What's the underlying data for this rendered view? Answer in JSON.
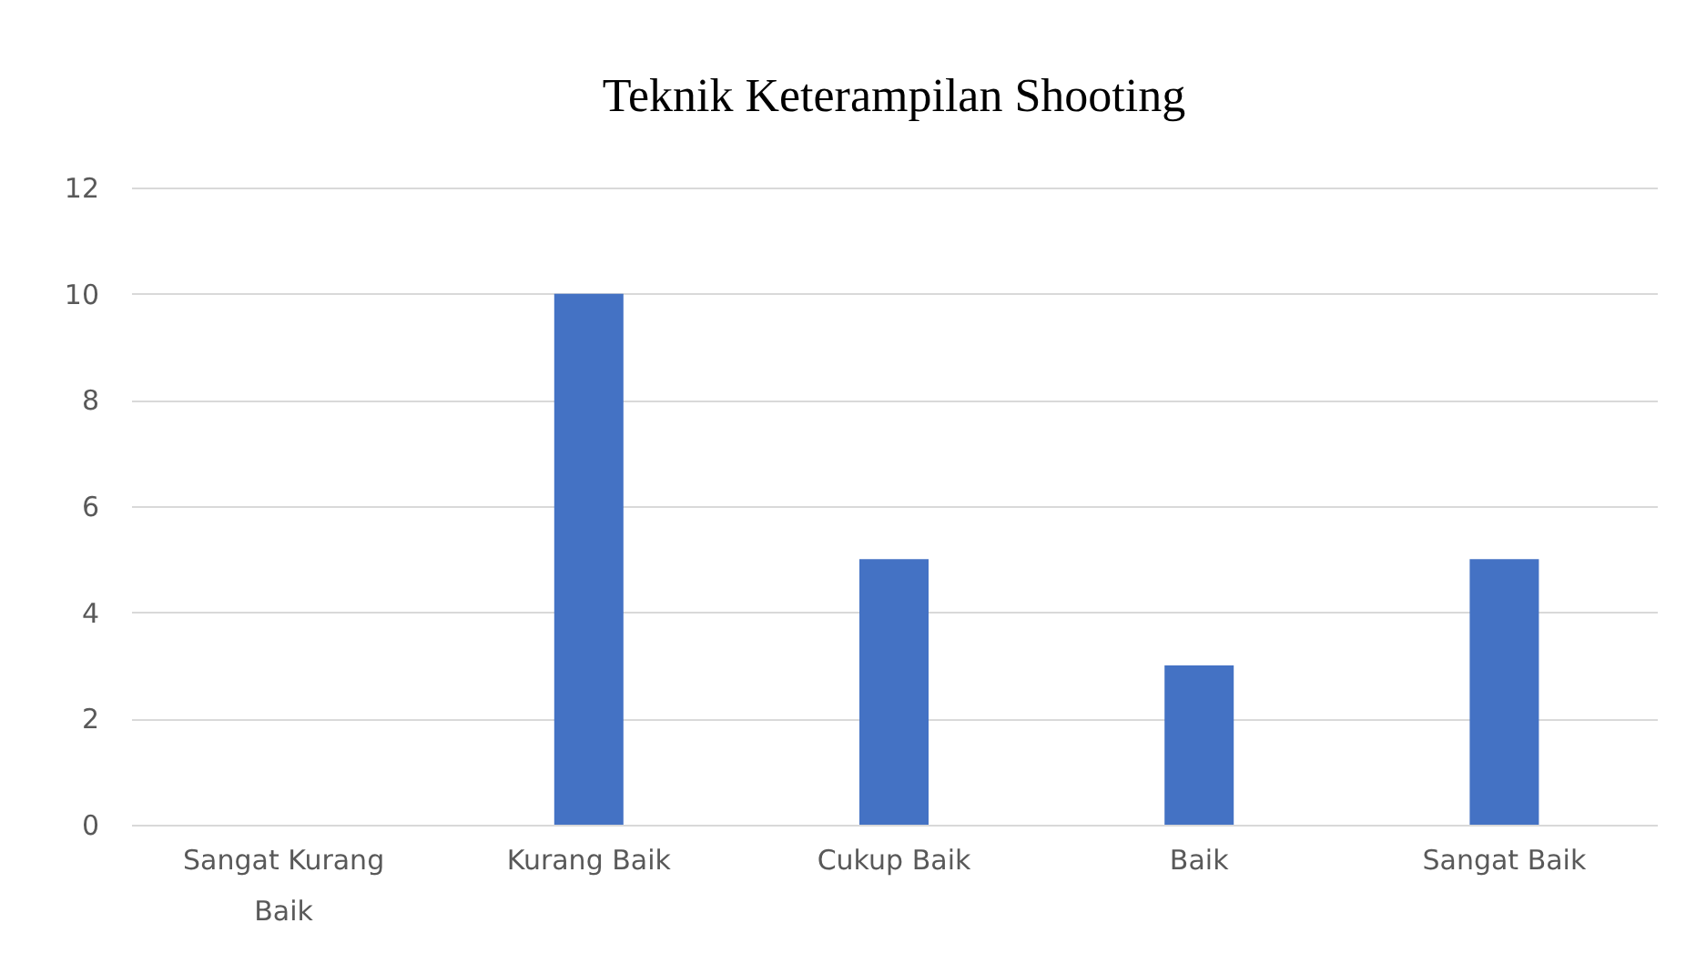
{
  "chart_data": {
    "type": "bar",
    "title": "Teknik Keterampilan Shooting",
    "categories": [
      "Sangat Kurang Baik",
      "Kurang Baik",
      "Cukup Baik",
      "Baik",
      "Sangat Baik"
    ],
    "values": [
      0,
      10,
      5,
      3,
      5
    ],
    "color": "#4472c4",
    "ylim": [
      0,
      12
    ],
    "yticks": [
      0,
      2,
      4,
      6,
      8,
      10,
      12
    ],
    "grid": "y"
  }
}
